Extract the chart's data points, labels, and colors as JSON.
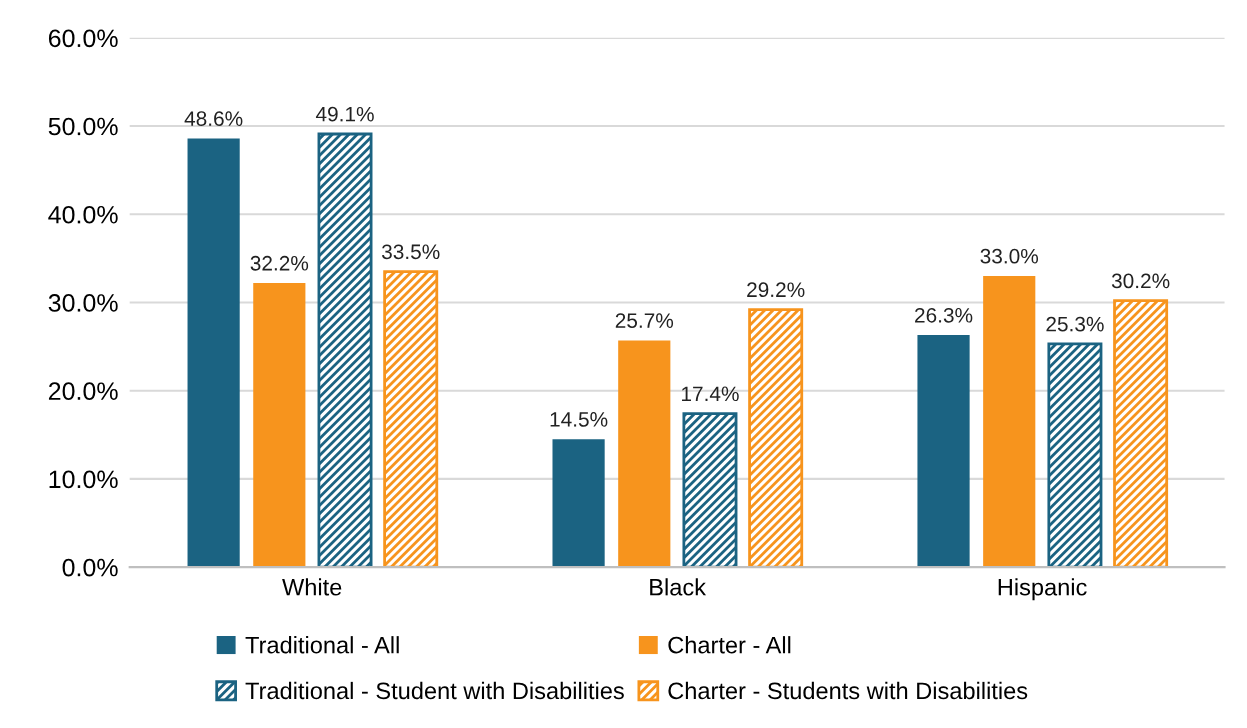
{
  "chart_data": {
    "type": "bar",
    "categories": [
      "White",
      "Black",
      "Hispanic"
    ],
    "series": [
      {
        "name": "Traditional - All",
        "color": "#1b6382",
        "values": [
          48.6,
          14.5,
          26.3
        ],
        "value_labels": [
          "48.6%",
          "14.5%",
          "26.3%"
        ]
      },
      {
        "name": "Charter - All",
        "color": "#f7941d",
        "values": [
          32.2,
          25.7,
          33.0
        ],
        "value_labels": [
          "32.2%",
          "25.7%",
          "33.0%"
        ]
      },
      {
        "name": "Traditional - Student with Disabilities",
        "color": "#1b6382",
        "values": [
          49.1,
          17.4,
          25.3
        ],
        "value_labels": [
          "49.1%",
          "17.4%",
          "25.3%"
        ]
      },
      {
        "name": "Charter - Students with Disabilities",
        "color": "#f7941d",
        "values": [
          33.5,
          29.2,
          30.2
        ],
        "value_labels": [
          "33.5%",
          "29.2%",
          "30.2%"
        ]
      }
    ],
    "ylim": [
      0,
      60
    ],
    "yticks": [
      {
        "value": 0,
        "label": "0.0%"
      },
      {
        "value": 10,
        "label": "10.0%"
      },
      {
        "value": 20,
        "label": "20.0%"
      },
      {
        "value": 30,
        "label": "30.0%"
      },
      {
        "value": 40,
        "label": "40.0%"
      },
      {
        "value": 50,
        "label": "50.0%"
      },
      {
        "value": 60,
        "label": "60.0%"
      }
    ],
    "grid": "y",
    "legend": "bottom"
  }
}
